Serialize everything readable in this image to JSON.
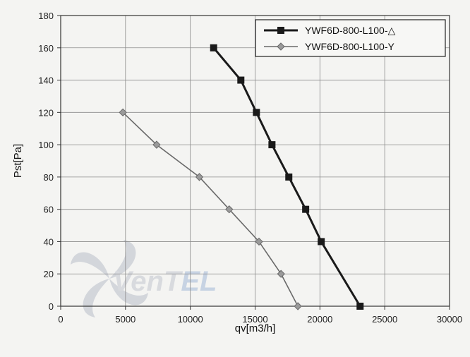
{
  "chart_data": {
    "type": "line",
    "title": "",
    "xlabel": "qv[m3/h]",
    "ylabel": "Pst[Pa]",
    "xlim": [
      0,
      30000
    ],
    "ylim": [
      0,
      180
    ],
    "x_ticks": [
      0,
      5000,
      10000,
      15000,
      20000,
      25000,
      30000
    ],
    "y_ticks": [
      0,
      20,
      40,
      60,
      80,
      100,
      120,
      140,
      160,
      180
    ],
    "grid": true,
    "legend_position": "top-right",
    "series": [
      {
        "name": "YWF6D-800-L100-△",
        "marker": "square",
        "color": "#1a1a1a",
        "points": [
          {
            "x": 11800,
            "y": 160
          },
          {
            "x": 13900,
            "y": 140
          },
          {
            "x": 15100,
            "y": 120
          },
          {
            "x": 16300,
            "y": 100
          },
          {
            "x": 17600,
            "y": 80
          },
          {
            "x": 18900,
            "y": 60
          },
          {
            "x": 20100,
            "y": 40
          },
          {
            "x": 23100,
            "y": 0
          }
        ]
      },
      {
        "name": "YWF6D-800-L100-Y",
        "marker": "diamond",
        "color": "#6a6a6a",
        "points": [
          {
            "x": 4800,
            "y": 120
          },
          {
            "x": 7400,
            "y": 100
          },
          {
            "x": 10700,
            "y": 80
          },
          {
            "x": 13000,
            "y": 60
          },
          {
            "x": 15300,
            "y": 40
          },
          {
            "x": 17000,
            "y": 20
          },
          {
            "x": 18300,
            "y": 0
          }
        ]
      }
    ]
  },
  "watermark": {
    "part1": "VenT",
    "part2": "EL"
  }
}
